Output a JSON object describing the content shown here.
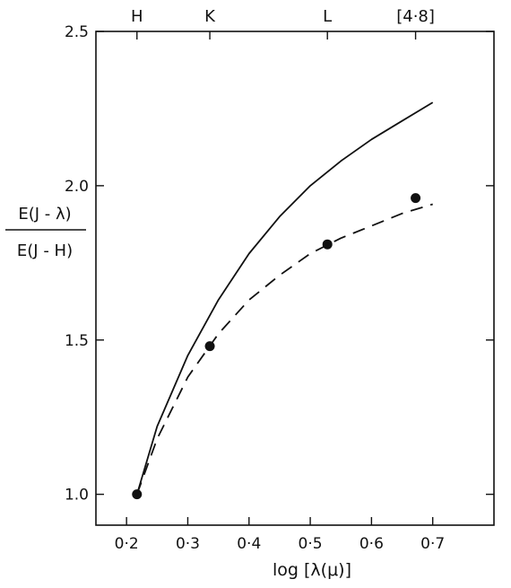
{
  "chart_data": {
    "type": "line",
    "title": "",
    "xlabel": "log [λ(μ)]",
    "ylabel_numerator": "E(J - λ)",
    "ylabel_denominator": "E(J - H)",
    "xlim": [
      0.15,
      0.8
    ],
    "ylim": [
      0.9,
      2.5
    ],
    "x_ticks": [
      0.2,
      0.3,
      0.4,
      0.5,
      0.6,
      0.7
    ],
    "x_tick_labels": [
      "0·2",
      "0·3",
      "0·4",
      "0·5",
      "0·6",
      "0·7"
    ],
    "y_ticks": [
      1.0,
      1.5,
      2.0,
      2.5
    ],
    "y_tick_labels": [
      "1.0",
      "1.5",
      "2.0",
      "2.5"
    ],
    "top_axis_labels": [
      {
        "x": 0.217,
        "label": "H"
      },
      {
        "x": 0.336,
        "label": "K"
      },
      {
        "x": 0.528,
        "label": "L"
      },
      {
        "x": 0.672,
        "label": "[4·8]"
      }
    ],
    "grid": false,
    "series": [
      {
        "style": "solid",
        "x": [
          0.217,
          0.25,
          0.3,
          0.35,
          0.4,
          0.45,
          0.5,
          0.55,
          0.6,
          0.65,
          0.7
        ],
        "y": [
          1.0,
          1.22,
          1.45,
          1.63,
          1.78,
          1.9,
          2.0,
          2.08,
          2.15,
          2.21,
          2.27
        ]
      },
      {
        "style": "dashed",
        "x": [
          0.217,
          0.25,
          0.3,
          0.35,
          0.4,
          0.45,
          0.5,
          0.55,
          0.6,
          0.65,
          0.7
        ],
        "y": [
          1.0,
          1.18,
          1.38,
          1.52,
          1.63,
          1.71,
          1.78,
          1.83,
          1.87,
          1.91,
          1.94
        ]
      }
    ],
    "points": {
      "x": [
        0.217,
        0.336,
        0.528,
        0.672
      ],
      "y": [
        1.0,
        1.48,
        1.81,
        1.96
      ]
    }
  }
}
